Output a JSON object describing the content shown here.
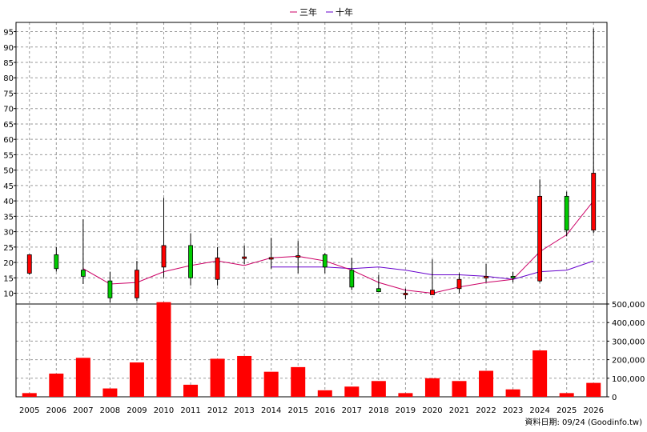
{
  "chart_data": {
    "type": "candlestick-with-volume-bars",
    "legend": [
      {
        "label": "三年",
        "color": "#cc0066"
      },
      {
        "label": "十年",
        "color": "#6600cc"
      }
    ],
    "categories": [
      "2005",
      "2006",
      "2007",
      "2008",
      "2009",
      "2010",
      "2011",
      "2012",
      "2013",
      "2014",
      "2015",
      "2016",
      "2017",
      "2018",
      "2019",
      "2020",
      "2021",
      "2022",
      "2023",
      "2024",
      "2025",
      "2026"
    ],
    "price_axis": {
      "ticks": [
        10,
        15,
        20,
        25,
        30,
        35,
        40,
        45,
        50,
        55,
        60,
        65,
        70,
        75,
        80,
        85,
        90,
        95
      ],
      "range": [
        6.5,
        98
      ]
    },
    "volume_axis": {
      "ticks": [
        0,
        100000,
        200000,
        300000,
        400000,
        500000
      ],
      "tick_labels": [
        "0",
        "100,000",
        "200,000",
        "300,000",
        "400,000",
        "500,000"
      ],
      "range": [
        0,
        500000
      ]
    },
    "candles": [
      {
        "open": 16.5,
        "close": 22.5,
        "high": 22.5,
        "low": 16.0
      },
      {
        "open": 22.5,
        "close": 18.0,
        "high": 25.0,
        "low": 17.0
      },
      {
        "open": 17.5,
        "close": 15.5,
        "high": 34.0,
        "low": 13.0
      },
      {
        "open": 14.0,
        "close": 8.5,
        "high": 17.0,
        "low": 7.0
      },
      {
        "open": 8.5,
        "close": 17.5,
        "high": 20.5,
        "low": 7.5
      },
      {
        "open": 18.5,
        "close": 25.5,
        "high": 41.0,
        "low": 15.0
      },
      {
        "open": 25.5,
        "close": 15.0,
        "high": 29.5,
        "low": 12.5
      },
      {
        "open": 14.5,
        "close": 21.5,
        "high": 25.0,
        "low": 12.5
      },
      {
        "open": 21.5,
        "close": 21.8,
        "high": 25.5,
        "low": 19.5
      },
      {
        "open": 21.3,
        "close": 21.6,
        "high": 28.0,
        "low": 18.0
      },
      {
        "open": 22.0,
        "close": 22.2,
        "high": 27.0,
        "low": 16.5
      },
      {
        "open": 22.5,
        "close": 18.5,
        "high": 23.0,
        "low": 16.5
      },
      {
        "open": 17.5,
        "close": 12.0,
        "high": 21.5,
        "low": 11.0
      },
      {
        "open": 11.5,
        "close": 10.5,
        "high": 16.0,
        "low": 10.5
      },
      {
        "open": 9.5,
        "close": 10.0,
        "high": 11.5,
        "low": 8.0
      },
      {
        "open": 9.5,
        "close": 11.0,
        "high": 21.0,
        "low": 9.5
      },
      {
        "open": 11.5,
        "close": 14.5,
        "high": 16.5,
        "low": 10.0
      },
      {
        "open": 15.0,
        "close": 15.5,
        "high": 19.5,
        "low": 13.5
      },
      {
        "open": 15.5,
        "close": 15.2,
        "high": 17.0,
        "low": 13.5
      },
      {
        "open": 14.0,
        "close": 41.5,
        "high": 47.0,
        "low": 13.5
      },
      {
        "open": 41.5,
        "close": 30.5,
        "high": 43.0,
        "low": 28.5
      },
      {
        "open": 30.5,
        "close": 49.0,
        "high": 96.0,
        "low": 29.5
      }
    ],
    "ma_3yr": [
      null,
      null,
      18.0,
      13.0,
      13.5,
      17.0,
      19.0,
      20.5,
      19.0,
      21.5,
      22.0,
      20.5,
      17.5,
      13.5,
      11.0,
      10.0,
      12.0,
      13.5,
      14.5,
      23.5,
      29.0,
      40.0
    ],
    "ma_10yr": [
      null,
      null,
      null,
      null,
      null,
      null,
      null,
      null,
      null,
      18.5,
      18.5,
      18.5,
      18.0,
      18.5,
      17.5,
      16.0,
      16.0,
      15.5,
      14.5,
      17.0,
      17.5,
      20.5
    ],
    "volume": [
      20000,
      125000,
      210000,
      45000,
      185000,
      510000,
      65000,
      205000,
      220000,
      135000,
      160000,
      35000,
      55000,
      85000,
      20000,
      100000,
      85000,
      140000,
      40000,
      250000,
      20000,
      75000
    ]
  },
  "footer": {
    "note": "資料日期: 09/24 (Goodinfo.tw)"
  }
}
